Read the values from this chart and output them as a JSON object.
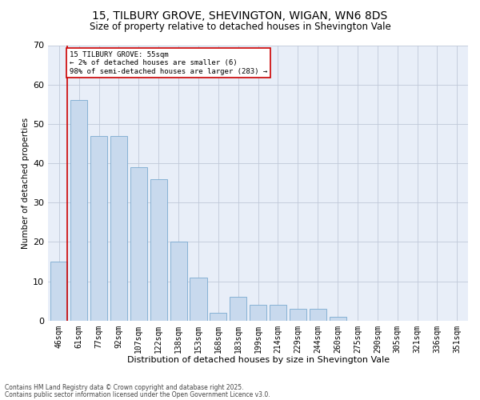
{
  "title_line1": "15, TILBURY GROVE, SHEVINGTON, WIGAN, WN6 8DS",
  "title_line2": "Size of property relative to detached houses in Shevington Vale",
  "xlabel": "Distribution of detached houses by size in Shevington Vale",
  "ylabel": "Number of detached properties",
  "categories": [
    "46sqm",
    "61sqm",
    "77sqm",
    "92sqm",
    "107sqm",
    "122sqm",
    "138sqm",
    "153sqm",
    "168sqm",
    "183sqm",
    "199sqm",
    "214sqm",
    "229sqm",
    "244sqm",
    "260sqm",
    "275sqm",
    "290sqm",
    "305sqm",
    "321sqm",
    "336sqm",
    "351sqm"
  ],
  "values": [
    15,
    56,
    47,
    47,
    39,
    36,
    20,
    11,
    2,
    6,
    4,
    4,
    3,
    3,
    1,
    0,
    0,
    0,
    0,
    0,
    0
  ],
  "bar_color": "#c8d9ed",
  "bar_edge_color": "#7aaad0",
  "ylim": [
    0,
    70
  ],
  "yticks": [
    0,
    10,
    20,
    30,
    40,
    50,
    60,
    70
  ],
  "annotation_text": "15 TILBURY GROVE: 55sqm\n← 2% of detached houses are smaller (6)\n98% of semi-detached houses are larger (283) →",
  "vline_color": "#cc0000",
  "plot_bg_color": "#e8eef8",
  "footer_line1": "Contains HM Land Registry data © Crown copyright and database right 2025.",
  "footer_line2": "Contains public sector information licensed under the Open Government Licence v3.0.",
  "grid_color": "#c0c8d8",
  "title_fontsize": 10,
  "subtitle_fontsize": 8.5,
  "tick_fontsize": 6,
  "xlabel_fontsize": 8,
  "ylabel_fontsize": 7.5,
  "annotation_fontsize": 6.5,
  "footer_fontsize": 5.5
}
